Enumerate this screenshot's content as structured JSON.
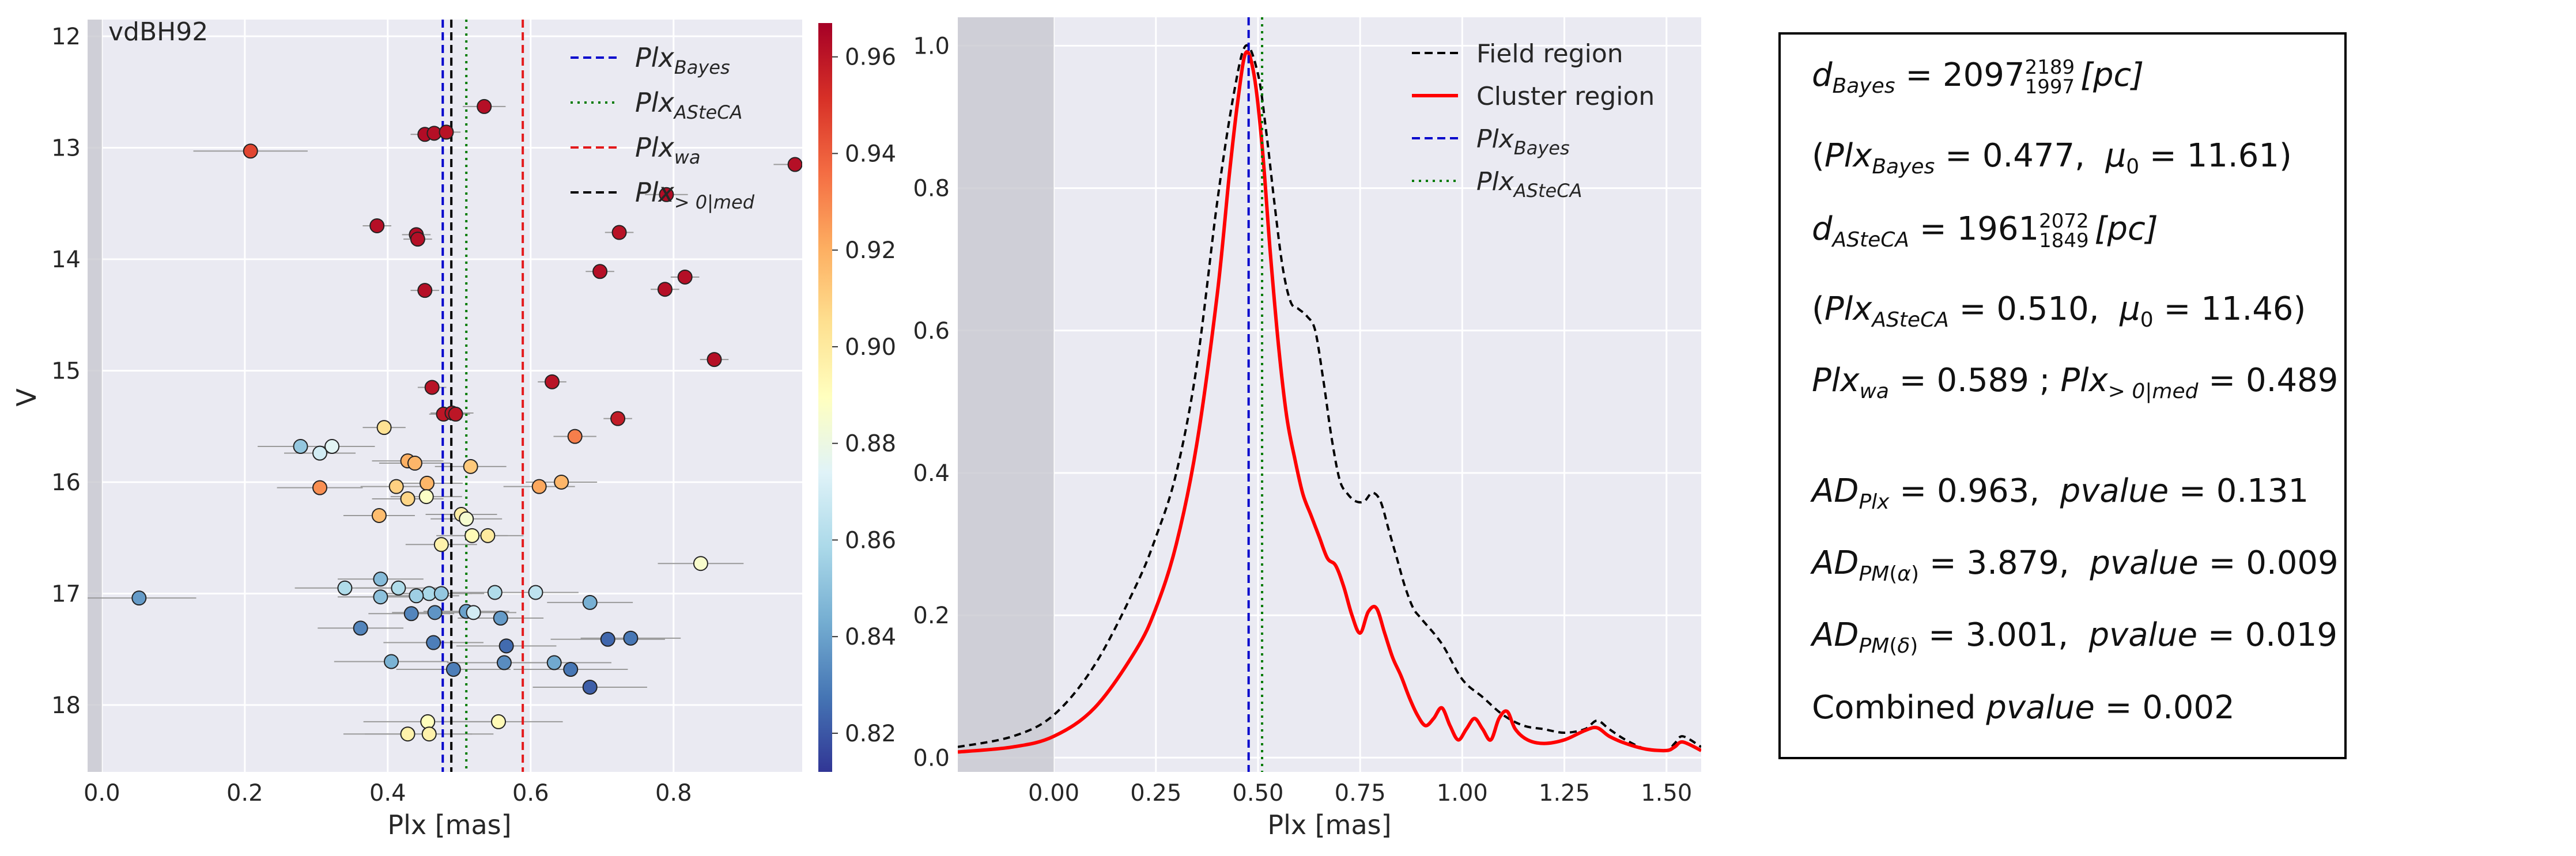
{
  "chart_data": [
    {
      "type": "scatter",
      "title": "vdBH92",
      "xlabel": "Plx [mas]",
      "ylabel": "V",
      "xlim": [
        -0.02,
        0.98
      ],
      "ylim": [
        18.6,
        11.85
      ],
      "y_inverted": true,
      "xticks": [
        "0.0",
        "0.2",
        "0.4",
        "0.6",
        "0.8"
      ],
      "yticks": [
        "12",
        "13",
        "14",
        "15",
        "16",
        "17",
        "18"
      ],
      "grid": true,
      "excluded_region": [
        -0.02,
        0.0
      ],
      "vlines": [
        {
          "name": "PlxBayes",
          "x": 0.477,
          "style": "dashed",
          "color": "#0000cc"
        },
        {
          "name": "PlxASteCA",
          "x": 0.51,
          "style": "dotted",
          "color": "#007a00"
        },
        {
          "name": "Plxwa",
          "x": 0.589,
          "style": "dashed",
          "color": "#e31a1c"
        },
        {
          "name": "Plx>0|med",
          "x": 0.489,
          "style": "dashed",
          "color": "#000000"
        }
      ],
      "legend": {
        "position": "top-right",
        "entries": [
          {
            "base": "Plx",
            "sub": "Bayes",
            "style": "dashed",
            "color": "#0000cc"
          },
          {
            "base": "Plx",
            "sub": "ASteCA",
            "style": "dotted",
            "color": "#007a00"
          },
          {
            "base": "Plx",
            "sub": "wa",
            "style": "dashed",
            "color": "#e31a1c"
          },
          {
            "base": "Plx",
            "sub": "> 0|med",
            "style": "dashed",
            "color": "#000000"
          }
        ]
      },
      "colorbar": {
        "range": [
          0.812,
          0.967
        ],
        "colormap": "RdYlBu_r",
        "ticks": [
          "0.82",
          "0.84",
          "0.86",
          "0.88",
          "0.90",
          "0.92",
          "0.94",
          "0.96"
        ],
        "tick_values": [
          0.82,
          0.84,
          0.86,
          0.88,
          0.9,
          0.92,
          0.94,
          0.96
        ]
      },
      "points": [
        {
          "x": 0.535,
          "y": 12.63,
          "err": 0.03,
          "p": 0.962
        },
        {
          "x": 0.452,
          "y": 12.88,
          "err": 0.02,
          "p": 0.963
        },
        {
          "x": 0.465,
          "y": 12.87,
          "err": 0.02,
          "p": 0.962
        },
        {
          "x": 0.482,
          "y": 12.86,
          "err": 0.02,
          "p": 0.961
        },
        {
          "x": 0.208,
          "y": 13.03,
          "err": 0.08,
          "p": 0.946
        },
        {
          "x": 0.97,
          "y": 13.15,
          "err": 0.03,
          "p": 0.962
        },
        {
          "x": 0.79,
          "y": 13.42,
          "err": 0.03,
          "p": 0.963
        },
        {
          "x": 0.385,
          "y": 13.7,
          "err": 0.02,
          "p": 0.962
        },
        {
          "x": 0.44,
          "y": 13.78,
          "err": 0.02,
          "p": 0.963
        },
        {
          "x": 0.442,
          "y": 13.82,
          "err": 0.02,
          "p": 0.962
        },
        {
          "x": 0.724,
          "y": 13.76,
          "err": 0.02,
          "p": 0.961
        },
        {
          "x": 0.697,
          "y": 14.11,
          "err": 0.02,
          "p": 0.962
        },
        {
          "x": 0.816,
          "y": 14.16,
          "err": 0.02,
          "p": 0.962
        },
        {
          "x": 0.452,
          "y": 14.28,
          "err": 0.02,
          "p": 0.962
        },
        {
          "x": 0.788,
          "y": 14.27,
          "err": 0.02,
          "p": 0.962
        },
        {
          "x": 0.857,
          "y": 14.9,
          "err": 0.02,
          "p": 0.962
        },
        {
          "x": 0.63,
          "y": 15.1,
          "err": 0.02,
          "p": 0.961
        },
        {
          "x": 0.462,
          "y": 15.15,
          "err": 0.02,
          "p": 0.961
        },
        {
          "x": 0.478,
          "y": 15.39,
          "err": 0.02,
          "p": 0.96
        },
        {
          "x": 0.49,
          "y": 15.38,
          "err": 0.03,
          "p": 0.961
        },
        {
          "x": 0.495,
          "y": 15.39,
          "err": 0.02,
          "p": 0.96
        },
        {
          "x": 0.722,
          "y": 15.43,
          "err": 0.02,
          "p": 0.958
        },
        {
          "x": 0.395,
          "y": 15.51,
          "err": 0.03,
          "p": 0.904
        },
        {
          "x": 0.662,
          "y": 15.59,
          "err": 0.03,
          "p": 0.932
        },
        {
          "x": 0.278,
          "y": 15.68,
          "err": 0.06,
          "p": 0.852
        },
        {
          "x": 0.322,
          "y": 15.68,
          "err": 0.06,
          "p": 0.875
        },
        {
          "x": 0.305,
          "y": 15.74,
          "err": 0.05,
          "p": 0.87
        },
        {
          "x": 0.428,
          "y": 15.81,
          "err": 0.05,
          "p": 0.92
        },
        {
          "x": 0.438,
          "y": 15.83,
          "err": 0.05,
          "p": 0.918
        },
        {
          "x": 0.516,
          "y": 15.86,
          "err": 0.05,
          "p": 0.912
        },
        {
          "x": 0.305,
          "y": 16.05,
          "err": 0.06,
          "p": 0.928
        },
        {
          "x": 0.412,
          "y": 16.04,
          "err": 0.05,
          "p": 0.91
        },
        {
          "x": 0.455,
          "y": 16.01,
          "err": 0.05,
          "p": 0.918
        },
        {
          "x": 0.612,
          "y": 16.04,
          "err": 0.05,
          "p": 0.922
        },
        {
          "x": 0.643,
          "y": 16.0,
          "err": 0.05,
          "p": 0.918
        },
        {
          "x": 0.428,
          "y": 16.15,
          "err": 0.05,
          "p": 0.908
        },
        {
          "x": 0.454,
          "y": 16.13,
          "err": 0.05,
          "p": 0.888
        },
        {
          "x": 0.388,
          "y": 16.3,
          "err": 0.05,
          "p": 0.916
        },
        {
          "x": 0.503,
          "y": 16.29,
          "err": 0.05,
          "p": 0.898
        },
        {
          "x": 0.51,
          "y": 16.33,
          "err": 0.05,
          "p": 0.885
        },
        {
          "x": 0.518,
          "y": 16.48,
          "err": 0.05,
          "p": 0.892
        },
        {
          "x": 0.54,
          "y": 16.48,
          "err": 0.05,
          "p": 0.9
        },
        {
          "x": 0.475,
          "y": 16.56,
          "err": 0.05,
          "p": 0.896
        },
        {
          "x": 0.838,
          "y": 16.73,
          "err": 0.06,
          "p": 0.886
        },
        {
          "x": 0.39,
          "y": 16.87,
          "err": 0.06,
          "p": 0.848
        },
        {
          "x": 0.34,
          "y": 16.95,
          "err": 0.07,
          "p": 0.86
        },
        {
          "x": 0.415,
          "y": 16.95,
          "err": 0.06,
          "p": 0.86
        },
        {
          "x": 0.458,
          "y": 17.0,
          "err": 0.06,
          "p": 0.858
        },
        {
          "x": 0.475,
          "y": 17.0,
          "err": 0.06,
          "p": 0.852
        },
        {
          "x": 0.607,
          "y": 16.99,
          "err": 0.06,
          "p": 0.864
        },
        {
          "x": 0.55,
          "y": 16.99,
          "err": 0.06,
          "p": 0.86
        },
        {
          "x": 0.052,
          "y": 17.04,
          "err": 0.08,
          "p": 0.838
        },
        {
          "x": 0.39,
          "y": 17.03,
          "err": 0.06,
          "p": 0.85
        },
        {
          "x": 0.44,
          "y": 17.02,
          "err": 0.06,
          "p": 0.855
        },
        {
          "x": 0.683,
          "y": 17.08,
          "err": 0.06,
          "p": 0.844
        },
        {
          "x": 0.433,
          "y": 17.18,
          "err": 0.06,
          "p": 0.832
        },
        {
          "x": 0.466,
          "y": 17.17,
          "err": 0.06,
          "p": 0.836
        },
        {
          "x": 0.51,
          "y": 17.16,
          "err": 0.06,
          "p": 0.84
        },
        {
          "x": 0.52,
          "y": 17.17,
          "err": 0.06,
          "p": 0.87
        },
        {
          "x": 0.558,
          "y": 17.22,
          "err": 0.06,
          "p": 0.838
        },
        {
          "x": 0.362,
          "y": 17.31,
          "err": 0.06,
          "p": 0.832
        },
        {
          "x": 0.464,
          "y": 17.44,
          "err": 0.07,
          "p": 0.83
        },
        {
          "x": 0.566,
          "y": 17.47,
          "err": 0.07,
          "p": 0.825
        },
        {
          "x": 0.708,
          "y": 17.41,
          "err": 0.08,
          "p": 0.824
        },
        {
          "x": 0.74,
          "y": 17.4,
          "err": 0.07,
          "p": 0.828
        },
        {
          "x": 0.405,
          "y": 17.61,
          "err": 0.08,
          "p": 0.845
        },
        {
          "x": 0.492,
          "y": 17.68,
          "err": 0.08,
          "p": 0.83
        },
        {
          "x": 0.563,
          "y": 17.62,
          "err": 0.08,
          "p": 0.834
        },
        {
          "x": 0.633,
          "y": 17.62,
          "err": 0.08,
          "p": 0.842
        },
        {
          "x": 0.656,
          "y": 17.68,
          "err": 0.08,
          "p": 0.828
        },
        {
          "x": 0.683,
          "y": 17.84,
          "err": 0.08,
          "p": 0.822
        },
        {
          "x": 0.456,
          "y": 18.15,
          "err": 0.09,
          "p": 0.89
        },
        {
          "x": 0.555,
          "y": 18.15,
          "err": 0.09,
          "p": 0.892
        },
        {
          "x": 0.428,
          "y": 18.26,
          "err": 0.09,
          "p": 0.896
        },
        {
          "x": 0.458,
          "y": 18.26,
          "err": 0.09,
          "p": 0.896
        }
      ]
    },
    {
      "type": "line",
      "xlabel": "Plx [mas]",
      "ylabel": "",
      "xlim": [
        -0.235,
        1.585
      ],
      "ylim": [
        -0.02,
        1.04
      ],
      "xticks": [
        "0.00",
        "0.25",
        "0.50",
        "0.75",
        "1.00",
        "1.25",
        "1.50"
      ],
      "xtick_values": [
        0.0,
        0.25,
        0.5,
        0.75,
        1.0,
        1.25,
        1.5
      ],
      "yticks": [
        "0.0",
        "0.2",
        "0.4",
        "0.6",
        "0.8",
        "1.0"
      ],
      "ytick_values": [
        0.0,
        0.2,
        0.4,
        0.6,
        0.8,
        1.0
      ],
      "grid": true,
      "excluded_region": [
        -0.235,
        0.0
      ],
      "legend": {
        "position": "top-right",
        "entries": [
          {
            "label": "Field region",
            "style": "dashed",
            "color": "#000000"
          },
          {
            "label": "Cluster region",
            "style": "solid",
            "color": "#ff0000"
          },
          {
            "base": "Plx",
            "sub": "Bayes",
            "style": "dashed",
            "color": "#0000cc"
          },
          {
            "base": "Plx",
            "sub": "ASteCA",
            "style": "dotted",
            "color": "#007a00"
          }
        ]
      },
      "vlines": [
        {
          "name": "PlxBayes",
          "x": 0.477,
          "style": "dashed",
          "color": "#0000cc"
        },
        {
          "name": "PlxASteCA",
          "x": 0.51,
          "style": "dotted",
          "color": "#007a00"
        }
      ],
      "series": [
        {
          "name": "Field region",
          "style": "dashed",
          "color": "#000000",
          "x": [
            -0.235,
            -0.1,
            0.0,
            0.1,
            0.2,
            0.25,
            0.3,
            0.35,
            0.4,
            0.44,
            0.47,
            0.5,
            0.52,
            0.54,
            0.56,
            0.58,
            0.6,
            0.62,
            0.64,
            0.66,
            0.68,
            0.7,
            0.72,
            0.74,
            0.76,
            0.78,
            0.8,
            0.82,
            0.84,
            0.86,
            0.88,
            0.9,
            0.95,
            1.0,
            1.05,
            1.1,
            1.15,
            1.2,
            1.25,
            1.3,
            1.33,
            1.36,
            1.4,
            1.45,
            1.5,
            1.52,
            1.54,
            1.585
          ],
          "y": [
            0.015,
            0.03,
            0.06,
            0.13,
            0.24,
            0.31,
            0.4,
            0.55,
            0.78,
            0.93,
            1.0,
            0.96,
            0.88,
            0.78,
            0.69,
            0.64,
            0.63,
            0.62,
            0.6,
            0.53,
            0.45,
            0.39,
            0.37,
            0.36,
            0.36,
            0.372,
            0.36,
            0.32,
            0.28,
            0.24,
            0.21,
            0.195,
            0.16,
            0.11,
            0.085,
            0.06,
            0.045,
            0.04,
            0.035,
            0.04,
            0.052,
            0.04,
            0.025,
            0.012,
            0.01,
            0.02,
            0.03,
            0.015
          ]
        },
        {
          "name": "Cluster region",
          "style": "solid",
          "color": "#ff0000",
          "x": [
            -0.235,
            -0.1,
            0.0,
            0.1,
            0.2,
            0.25,
            0.3,
            0.35,
            0.4,
            0.43,
            0.45,
            0.47,
            0.49,
            0.51,
            0.53,
            0.55,
            0.57,
            0.59,
            0.61,
            0.63,
            0.65,
            0.67,
            0.69,
            0.71,
            0.73,
            0.75,
            0.77,
            0.79,
            0.81,
            0.83,
            0.85,
            0.87,
            0.89,
            0.91,
            0.93,
            0.95,
            0.97,
            0.99,
            1.01,
            1.03,
            1.05,
            1.07,
            1.09,
            1.11,
            1.13,
            1.16,
            1.2,
            1.25,
            1.3,
            1.33,
            1.36,
            1.4,
            1.45,
            1.5,
            1.52,
            1.54,
            1.585
          ],
          "y": [
            0.008,
            0.015,
            0.03,
            0.07,
            0.15,
            0.21,
            0.3,
            0.44,
            0.65,
            0.82,
            0.92,
            0.99,
            0.96,
            0.86,
            0.71,
            0.58,
            0.48,
            0.42,
            0.37,
            0.34,
            0.31,
            0.28,
            0.27,
            0.24,
            0.2,
            0.175,
            0.205,
            0.21,
            0.175,
            0.14,
            0.115,
            0.085,
            0.06,
            0.045,
            0.055,
            0.07,
            0.045,
            0.025,
            0.04,
            0.055,
            0.04,
            0.025,
            0.055,
            0.065,
            0.04,
            0.025,
            0.02,
            0.025,
            0.038,
            0.042,
            0.03,
            0.02,
            0.012,
            0.01,
            0.015,
            0.022,
            0.01
          ]
        }
      ]
    }
  ],
  "panel_right": {
    "d_bayes": "2097",
    "d_bayes_sup": "2189",
    "d_bayes_sub": "1997",
    "d_bayes_unit": "[pc]",
    "plx_bayes": "0.477",
    "mu0_bayes": "11.61",
    "d_asteca": "1961",
    "d_asteca_sup": "2072",
    "d_asteca_sub": "1849",
    "d_asteca_unit": "[pc]",
    "plx_asteca": "0.510",
    "mu0_asteca": "11.46",
    "plx_wa": "0.589",
    "plx_med": "0.489",
    "ad_plx": "0.963",
    "pvalue_plx": "0.131",
    "ad_pm_alpha": "3.879",
    "pvalue_pm_alpha": "0.009",
    "ad_pm_delta": "3.001",
    "pvalue_pm_delta": "0.019",
    "combined_label": "Combined",
    "combined_pvalue": "0.002"
  }
}
